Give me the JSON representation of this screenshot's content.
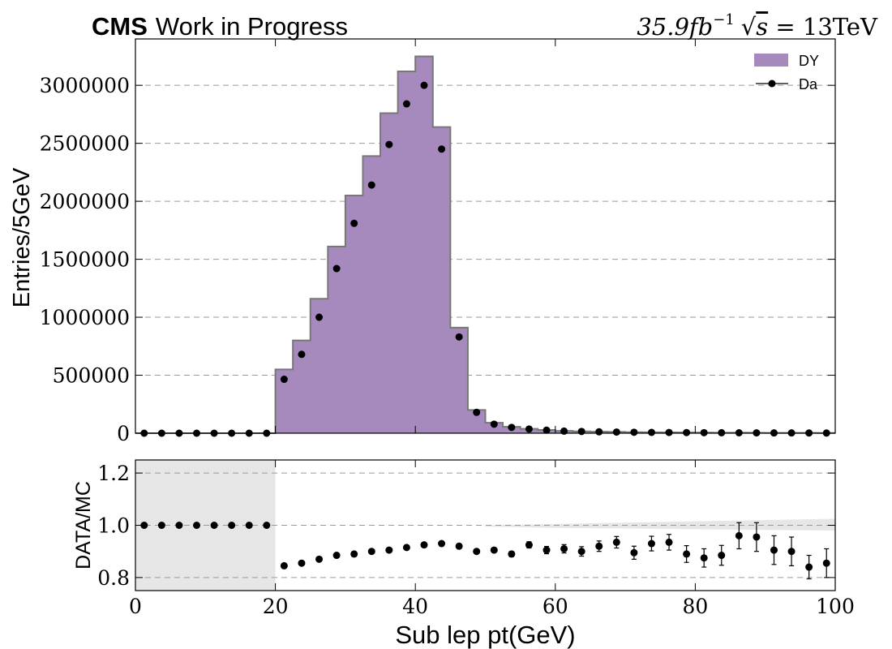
{
  "header": {
    "experiment": "CMS",
    "status": "Work in Progress",
    "lumi": "35.9fb",
    "lumi_exp": "−1",
    "energy_sqrt": "√",
    "energy_s": "s",
    "energy_value": " = 13TeV"
  },
  "chart_data": [
    {
      "type": "bar",
      "panel": "main",
      "title": "",
      "xlabel": "",
      "ylabel": "Entries/5GeV",
      "xlim": [
        0,
        100
      ],
      "ylim": [
        0,
        3400000
      ],
      "grid": "horizontal dashed",
      "legend_position": "top-right",
      "yticks": [
        0,
        500000,
        1000000,
        1500000,
        2000000,
        2500000,
        3000000
      ],
      "ytick_labels": [
        "0",
        "500000",
        "1000000",
        "1500000",
        "2000000",
        "2500000",
        "3000000"
      ],
      "bin_edges": [
        0,
        2.5,
        5,
        7.5,
        10,
        12.5,
        15,
        17.5,
        20,
        22.5,
        25,
        27.5,
        30,
        32.5,
        35,
        37.5,
        40,
        42.5,
        45,
        47.5,
        50,
        52.5,
        55,
        57.5,
        60,
        62.5,
        65,
        67.5,
        70,
        72.5,
        75,
        77.5,
        80,
        82.5,
        85,
        87.5,
        90,
        92.5,
        95,
        97.5,
        100
      ],
      "series": [
        {
          "name": "DY",
          "kind": "stacked histogram",
          "color": "#a68abd",
          "values": [
            0,
            0,
            0,
            0,
            0,
            0,
            0,
            0,
            550000,
            800000,
            1160000,
            1610000,
            2050000,
            2390000,
            2760000,
            3120000,
            3250000,
            2640000,
            910000,
            200000,
            90000,
            55000,
            38000,
            28000,
            20000,
            16000,
            13000,
            11000,
            9000,
            8000,
            7000,
            6000,
            5000,
            4500,
            4000,
            3500,
            3000,
            2700,
            2400,
            2000
          ]
        },
        {
          "name": "Da",
          "kind": "data points",
          "color": "#000000",
          "x": [
            1.25,
            3.75,
            6.25,
            8.75,
            11.25,
            13.75,
            16.25,
            18.75,
            21.25,
            23.75,
            26.25,
            28.75,
            31.25,
            33.75,
            36.25,
            38.75,
            41.25,
            43.75,
            46.25,
            48.75,
            51.25,
            53.75,
            56.25,
            58.75,
            61.25,
            63.75,
            66.25,
            68.75,
            71.25,
            73.75,
            76.25,
            78.75,
            81.25,
            83.75,
            86.25,
            88.75,
            91.25,
            93.75,
            96.25,
            98.75
          ],
          "values": [
            0,
            0,
            0,
            0,
            0,
            0,
            0,
            0,
            465000,
            680000,
            1000000,
            1420000,
            1810000,
            2140000,
            2490000,
            2840000,
            3000000,
            2450000,
            830000,
            180000,
            78000,
            50000,
            36000,
            26000,
            18000,
            15000,
            12000,
            10000,
            8000,
            7000,
            6500,
            5500,
            4500,
            4000,
            3500,
            3000,
            2500,
            2200,
            1900,
            1600
          ]
        }
      ]
    },
    {
      "type": "scatter",
      "panel": "ratio",
      "title": "",
      "xlabel": "Sub lep pt(GeV)",
      "ylabel": "DATA/MC",
      "xlim": [
        0,
        100
      ],
      "ylim": [
        0.75,
        1.25
      ],
      "grid": "horizontal dashed",
      "yticks": [
        0.8,
        1.0,
        1.2
      ],
      "ytick_labels": [
        "0.8",
        "1.0",
        "1.2"
      ],
      "xticks": [
        0,
        20,
        40,
        60,
        80,
        100
      ],
      "xtick_labels": [
        "0",
        "20",
        "40",
        "60",
        "80",
        "100"
      ],
      "shaded_region": {
        "x": [
          0,
          20
        ],
        "color": "#e6e6e6"
      },
      "uncertainty_band": {
        "x": [
          50,
          60,
          70,
          80,
          90,
          100
        ],
        "low": [
          0.995,
          0.99,
          0.988,
          0.985,
          0.982,
          0.98
        ],
        "high": [
          1.0,
          1.005,
          1.01,
          1.015,
          1.02,
          1.025
        ],
        "color": "#e6e6e6"
      },
      "series": [
        {
          "name": "",
          "color": "#000000",
          "x": [
            1.25,
            3.75,
            6.25,
            8.75,
            11.25,
            13.75,
            16.25,
            18.75,
            21.25,
            23.75,
            26.25,
            28.75,
            31.25,
            33.75,
            36.25,
            38.75,
            41.25,
            43.75,
            46.25,
            48.75,
            51.25,
            53.75,
            56.25,
            58.75,
            61.25,
            63.75,
            66.25,
            68.75,
            71.25,
            73.75,
            76.25,
            78.75,
            81.25,
            83.75,
            86.25,
            88.75,
            91.25,
            93.75,
            96.25,
            98.75
          ],
          "values": [
            1.0,
            1.0,
            1.0,
            1.0,
            1.0,
            1.0,
            1.0,
            1.0,
            0.845,
            0.855,
            0.87,
            0.885,
            0.89,
            0.9,
            0.905,
            0.915,
            0.925,
            0.93,
            0.92,
            0.9,
            0.905,
            0.89,
            0.925,
            0.905,
            0.91,
            0.9,
            0.92,
            0.935,
            0.895,
            0.93,
            0.935,
            0.89,
            0.875,
            0.885,
            0.96,
            0.955,
            0.905,
            0.9,
            0.84,
            0.855
          ],
          "errors": [
            0,
            0,
            0,
            0,
            0,
            0,
            0,
            0,
            0.003,
            0.003,
            0.003,
            0.003,
            0.003,
            0.003,
            0.003,
            0.003,
            0.003,
            0.003,
            0.004,
            0.005,
            0.007,
            0.01,
            0.012,
            0.014,
            0.016,
            0.018,
            0.02,
            0.022,
            0.025,
            0.028,
            0.03,
            0.032,
            0.035,
            0.038,
            0.05,
            0.055,
            0.055,
            0.055,
            0.045,
            0.055
          ]
        }
      ]
    }
  ]
}
